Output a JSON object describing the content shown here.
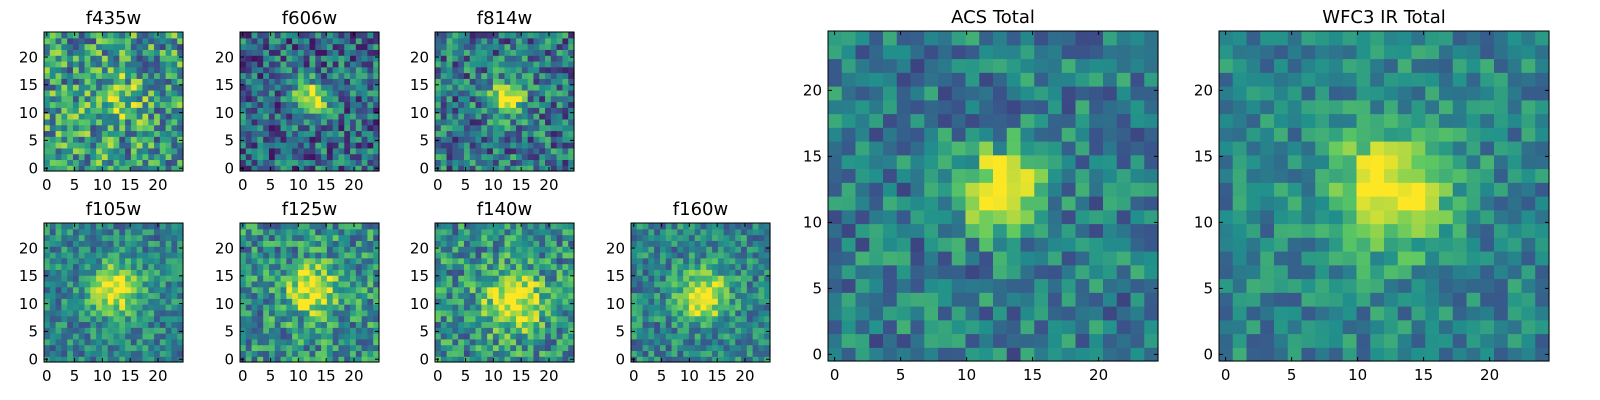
{
  "figure": {
    "colormap": "viridis",
    "colormap_stops": [
      "#440154",
      "#3b528b",
      "#21918c",
      "#5ec962",
      "#fde725"
    ]
  },
  "chart_data": [
    {
      "id": "f435w",
      "type": "heatmap",
      "title": "f435w",
      "xlabel": "",
      "ylabel": "",
      "xlim": [
        0,
        24
      ],
      "ylim": [
        0,
        24
      ],
      "xticks": [
        0,
        5,
        10,
        15,
        20
      ],
      "yticks": [
        0,
        5,
        10,
        15,
        20
      ],
      "grid_size": [
        24,
        24
      ],
      "peak": [
        12,
        12
      ],
      "peak_strength": 0.25,
      "peak_sigma": 3,
      "background": 0.55,
      "noise": 0.35,
      "seed": 11
    },
    {
      "id": "f606w",
      "type": "heatmap",
      "title": "f606w",
      "xlabel": "",
      "ylabel": "",
      "xlim": [
        0,
        24
      ],
      "ylim": [
        0,
        24
      ],
      "xticks": [
        0,
        5,
        10,
        15,
        20
      ],
      "yticks": [
        0,
        5,
        10,
        15,
        20
      ],
      "grid_size": [
        24,
        24
      ],
      "peak": [
        12,
        12
      ],
      "peak_strength": 0.75,
      "peak_sigma": 2,
      "background": 0.35,
      "noise": 0.3,
      "seed": 23
    },
    {
      "id": "f814w",
      "type": "heatmap",
      "title": "f814w",
      "xlabel": "",
      "ylabel": "",
      "xlim": [
        0,
        24
      ],
      "ylim": [
        0,
        24
      ],
      "xticks": [
        0,
        5,
        10,
        15,
        20
      ],
      "yticks": [
        0,
        5,
        10,
        15,
        20
      ],
      "grid_size": [
        24,
        24
      ],
      "peak": [
        12,
        12
      ],
      "peak_strength": 0.7,
      "peak_sigma": 2,
      "background": 0.4,
      "noise": 0.3,
      "seed": 37
    },
    {
      "id": "f105w",
      "type": "heatmap",
      "title": "f105w",
      "xlabel": "",
      "ylabel": "",
      "xlim": [
        0,
        24
      ],
      "ylim": [
        0,
        24
      ],
      "xticks": [
        0,
        5,
        10,
        15,
        20
      ],
      "yticks": [
        0,
        5,
        10,
        15,
        20
      ],
      "grid_size": [
        24,
        24
      ],
      "peak": [
        12,
        12
      ],
      "peak_strength": 0.6,
      "peak_sigma": 3,
      "background": 0.45,
      "noise": 0.22,
      "seed": 41
    },
    {
      "id": "f125w",
      "type": "heatmap",
      "title": "f125w",
      "xlabel": "",
      "ylabel": "",
      "xlim": [
        0,
        24
      ],
      "ylim": [
        0,
        24
      ],
      "xticks": [
        0,
        5,
        10,
        15,
        20
      ],
      "yticks": [
        0,
        5,
        10,
        15,
        20
      ],
      "grid_size": [
        24,
        24
      ],
      "peak": [
        12,
        12
      ],
      "peak_strength": 0.55,
      "peak_sigma": 3,
      "background": 0.5,
      "noise": 0.28,
      "seed": 53
    },
    {
      "id": "f140w",
      "type": "heatmap",
      "title": "f140w",
      "xlabel": "",
      "ylabel": "",
      "xlim": [
        0,
        24
      ],
      "ylim": [
        0,
        24
      ],
      "xticks": [
        0,
        5,
        10,
        15,
        20
      ],
      "yticks": [
        0,
        5,
        10,
        15,
        20
      ],
      "grid_size": [
        24,
        24
      ],
      "peak": [
        13,
        10
      ],
      "peak_strength": 0.55,
      "peak_sigma": 3.5,
      "background": 0.5,
      "noise": 0.28,
      "seed": 67
    },
    {
      "id": "f160w",
      "type": "heatmap",
      "title": "f160w",
      "xlabel": "",
      "ylabel": "",
      "xlim": [
        0,
        24
      ],
      "ylim": [
        0,
        24
      ],
      "xticks": [
        0,
        5,
        10,
        15,
        20
      ],
      "yticks": [
        0,
        5,
        10,
        15,
        20
      ],
      "grid_size": [
        24,
        24
      ],
      "peak": [
        12,
        11
      ],
      "peak_strength": 0.6,
      "peak_sigma": 3,
      "background": 0.45,
      "noise": 0.22,
      "seed": 79
    },
    {
      "id": "acs-total",
      "type": "heatmap",
      "title": "ACS Total",
      "xlabel": "",
      "ylabel": "",
      "xlim": [
        0,
        24
      ],
      "ylim": [
        0,
        24
      ],
      "xticks": [
        0,
        5,
        10,
        15,
        20
      ],
      "yticks": [
        0,
        5,
        10,
        15,
        20
      ],
      "grid_size": [
        24,
        24
      ],
      "peak": [
        12,
        12
      ],
      "peak_strength": 0.7,
      "peak_sigma": 2,
      "background": 0.42,
      "noise": 0.22,
      "seed": 97
    },
    {
      "id": "wfc3-ir-total",
      "type": "heatmap",
      "title": "WFC3 IR Total",
      "xlabel": "",
      "ylabel": "",
      "xlim": [
        0,
        24
      ],
      "ylim": [
        0,
        24
      ],
      "xticks": [
        0,
        5,
        10,
        15,
        20
      ],
      "yticks": [
        0,
        5,
        10,
        15,
        20
      ],
      "grid_size": [
        24,
        24
      ],
      "peak": [
        12,
        12
      ],
      "peak_strength": 0.62,
      "peak_sigma": 3,
      "background": 0.45,
      "noise": 0.18,
      "seed": 131
    }
  ]
}
